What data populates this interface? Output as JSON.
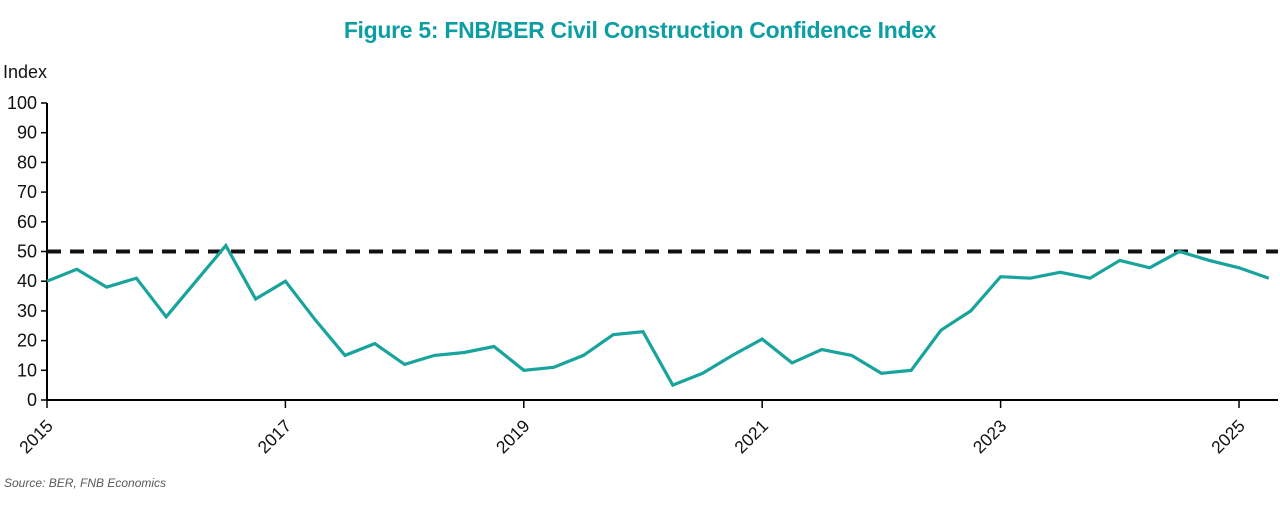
{
  "page": {
    "title": "Figure 5: FNB/BER Civil Construction Confidence Index",
    "title_color": "#0D9EA4",
    "source_note": "Source: BER, FNB Economics",
    "source_color": "#595959",
    "background_color": "#ffffff"
  },
  "chart_data": {
    "type": "line",
    "title": "Figure 5: FNB/BER Civil Construction Confidence Index",
    "xlabel": "",
    "ylabel": "Index",
    "ylim": [
      0,
      100
    ],
    "y_ticks": [
      0,
      10,
      20,
      30,
      40,
      50,
      60,
      70,
      80,
      90,
      100
    ],
    "x_tick_values": [
      2015,
      2017,
      2019,
      2021,
      2023,
      2025
    ],
    "x_tick_labels": [
      "2015",
      "2017",
      "2019",
      "2021",
      "2023",
      "2025"
    ],
    "grid": false,
    "legend_position": "none",
    "axis_color": "#000000",
    "reference_line": {
      "value": 50,
      "style": "dashed",
      "color": "#111111"
    },
    "series": [
      {
        "name": "FNB/BER Civil Construction Confidence Index",
        "color": "#18A49C",
        "frequency": "quarterly",
        "x": [
          2015.0,
          2015.25,
          2015.5,
          2015.75,
          2016.0,
          2016.25,
          2016.5,
          2016.75,
          2017.0,
          2017.25,
          2017.5,
          2017.75,
          2018.0,
          2018.25,
          2018.5,
          2018.75,
          2019.0,
          2019.25,
          2019.5,
          2019.75,
          2020.0,
          2020.25,
          2020.5,
          2020.75,
          2021.0,
          2021.25,
          2021.5,
          2021.75,
          2022.0,
          2022.25,
          2022.5,
          2022.75,
          2023.0,
          2023.25,
          2023.5,
          2023.75,
          2024.0,
          2024.25,
          2024.5,
          2024.75,
          2025.0,
          2025.25
        ],
        "values": [
          40,
          44,
          38,
          41,
          28,
          40,
          52,
          34,
          40,
          27,
          15,
          19,
          12,
          15,
          16,
          18,
          10,
          11,
          15,
          22,
          23,
          5,
          9,
          15,
          20.5,
          12.5,
          17,
          15,
          9,
          10,
          23.5,
          30,
          41.5,
          41,
          43,
          41,
          47,
          44.5,
          50,
          47,
          44.5,
          41
        ]
      }
    ]
  }
}
